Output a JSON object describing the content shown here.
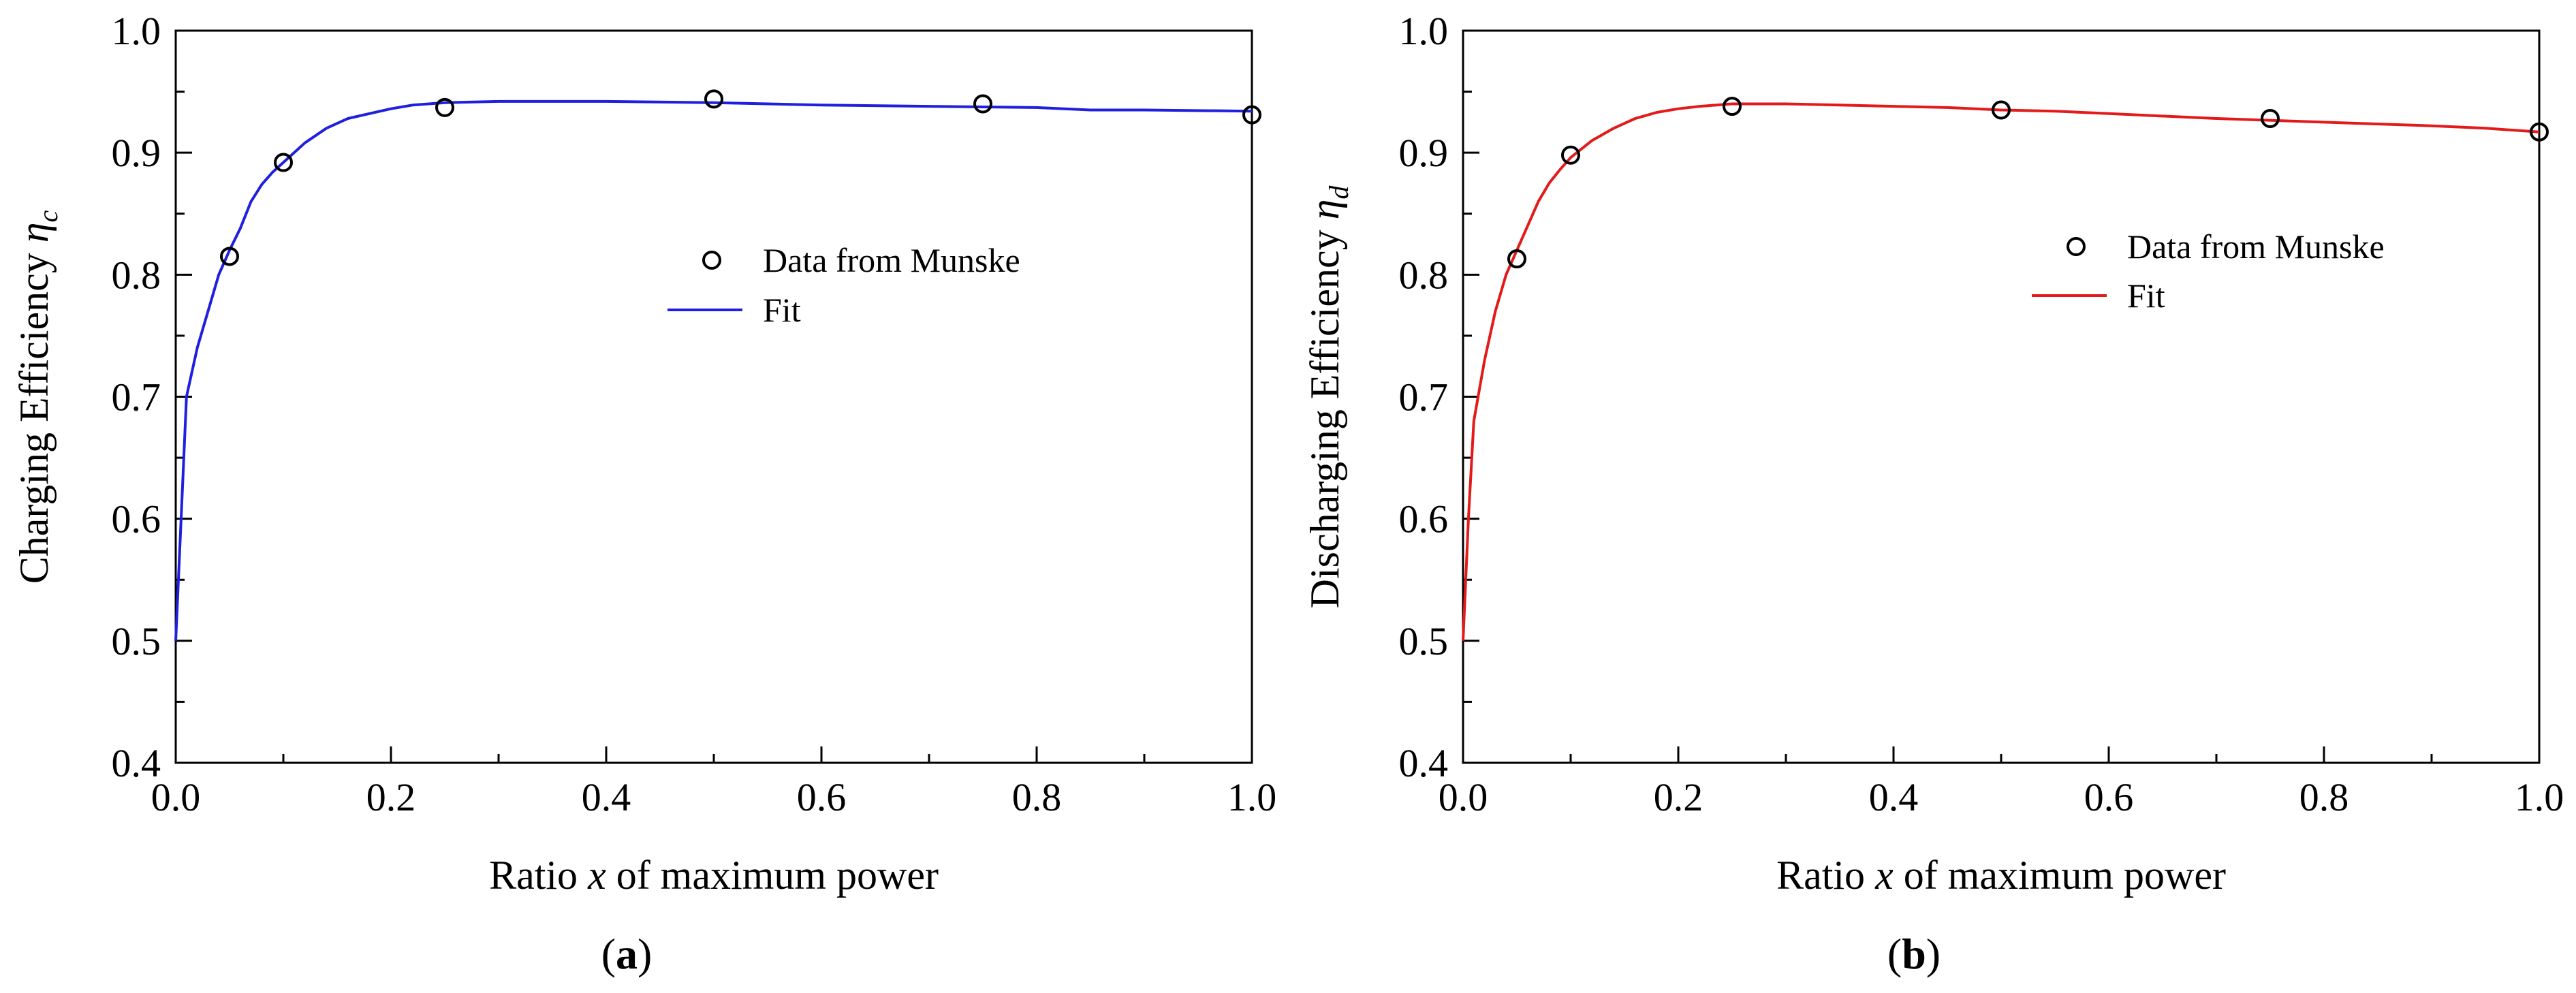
{
  "chart_data": [
    {
      "type": "line",
      "panel_label": "a",
      "ylabel_text": "Charging Efficiency",
      "ylabel_symbol": "η",
      "ylabel_subscript": "c",
      "xlabel_pre": "Ratio",
      "xlabel_var": "x",
      "xlabel_post": "of maximum power",
      "xlim": [
        0.0,
        1.0
      ],
      "ylim": [
        0.4,
        1.0
      ],
      "xticks": [
        "0.0",
        "0.2",
        "0.4",
        "0.6",
        "0.8",
        "1.0"
      ],
      "yticks": [
        "0.4",
        "0.5",
        "0.6",
        "0.7",
        "0.8",
        "0.9",
        "1.0"
      ],
      "series": [
        {
          "name": "Data from Munske",
          "kind": "scatter",
          "x": [
            0.05,
            0.1,
            0.25,
            0.5,
            0.75,
            1.0
          ],
          "y": [
            0.815,
            0.892,
            0.937,
            0.944,
            0.94,
            0.931
          ]
        },
        {
          "name": "Fit",
          "kind": "line",
          "color": "#1f1fe0",
          "x": [
            0.0,
            0.005,
            0.01,
            0.02,
            0.03,
            0.04,
            0.05,
            0.06,
            0.07,
            0.08,
            0.09,
            0.1,
            0.12,
            0.14,
            0.16,
            0.18,
            0.2,
            0.22,
            0.25,
            0.3,
            0.4,
            0.5,
            0.55,
            0.6,
            0.7,
            0.8,
            0.85,
            0.9,
            1.0
          ],
          "y": [
            0.5,
            0.6,
            0.7,
            0.74,
            0.77,
            0.8,
            0.82,
            0.838,
            0.86,
            0.874,
            0.884,
            0.892,
            0.908,
            0.92,
            0.928,
            0.932,
            0.936,
            0.939,
            0.941,
            0.942,
            0.942,
            0.941,
            0.94,
            0.939,
            0.938,
            0.937,
            0.935,
            0.935,
            0.934
          ]
        }
      ]
    },
    {
      "type": "line",
      "panel_label": "b",
      "ylabel_text": "Discharging Efficiency",
      "ylabel_symbol": "η",
      "ylabel_subscript": "d",
      "xlabel_pre": "Ratio",
      "xlabel_var": "x",
      "xlabel_post": "of maximum power",
      "xlim": [
        0.0,
        1.0
      ],
      "ylim": [
        0.4,
        1.0
      ],
      "xticks": [
        "0.0",
        "0.2",
        "0.4",
        "0.6",
        "0.8",
        "1.0"
      ],
      "yticks": [
        "0.4",
        "0.5",
        "0.6",
        "0.7",
        "0.8",
        "0.9",
        "1.0"
      ],
      "series": [
        {
          "name": "Data from Munske",
          "kind": "scatter",
          "x": [
            0.05,
            0.1,
            0.25,
            0.5,
            0.75,
            1.0
          ],
          "y": [
            0.813,
            0.898,
            0.938,
            0.935,
            0.928,
            0.917
          ]
        },
        {
          "name": "Fit",
          "kind": "line",
          "color": "#e41a1a",
          "x": [
            0.0,
            0.005,
            0.01,
            0.02,
            0.03,
            0.04,
            0.05,
            0.06,
            0.07,
            0.08,
            0.09,
            0.1,
            0.12,
            0.14,
            0.16,
            0.18,
            0.2,
            0.22,
            0.25,
            0.3,
            0.35,
            0.4,
            0.45,
            0.5,
            0.55,
            0.6,
            0.7,
            0.8,
            0.9,
            0.95,
            1.0
          ],
          "y": [
            0.5,
            0.6,
            0.68,
            0.73,
            0.77,
            0.8,
            0.82,
            0.84,
            0.86,
            0.875,
            0.886,
            0.896,
            0.91,
            0.92,
            0.928,
            0.933,
            0.936,
            0.938,
            0.94,
            0.94,
            0.939,
            0.938,
            0.937,
            0.935,
            0.934,
            0.932,
            0.928,
            0.925,
            0.922,
            0.92,
            0.917
          ]
        }
      ]
    }
  ]
}
